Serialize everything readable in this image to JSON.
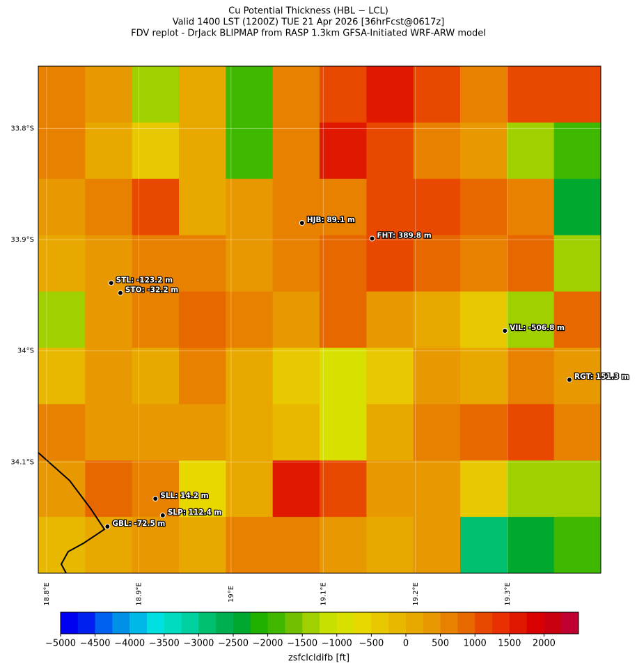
{
  "chart_data": {
    "type": "map",
    "title": [
      "Cu Potential Thickness (HBL − LCL)",
      "Valid 1400 LST (1200Z) TUE 21 Apr 2026 [36hrFcst@0617z]",
      "FDV replot - DrJack BLIPMAP from RASP 1.3km GFSA-Initiated WRF-ARW model"
    ],
    "xlim": [
      18.791,
      19.401
    ],
    "ylim": [
      33.744,
      34.2
    ],
    "xticks": [
      {
        "value": 18.8,
        "label": "18.8°E"
      },
      {
        "value": 18.9,
        "label": "18.9°E"
      },
      {
        "value": 19.0,
        "label": "19°E"
      },
      {
        "value": 19.1,
        "label": "19.1°E"
      },
      {
        "value": 19.2,
        "label": "19.2°E"
      },
      {
        "value": 19.3,
        "label": "19.3°E"
      }
    ],
    "yticks": [
      {
        "value": 33.8,
        "label": "33.8°S"
      },
      {
        "value": 33.9,
        "label": "33.9°S"
      },
      {
        "value": 34.0,
        "label": "34°S"
      },
      {
        "value": 34.1,
        "label": "34.1°S"
      }
    ],
    "grid": [
      [
        500,
        250,
        -1500,
        0,
        -2000,
        500,
        1000,
        1500,
        1000,
        500,
        1000,
        1000
      ],
      [
        500,
        0,
        -500,
        0,
        -2000,
        500,
        1500,
        1000,
        500,
        250,
        -1500,
        -2000
      ],
      [
        250,
        500,
        1000,
        0,
        250,
        500,
        500,
        1000,
        1000,
        750,
        500,
        -2500
      ],
      [
        0,
        250,
        500,
        500,
        250,
        500,
        750,
        1000,
        750,
        500,
        750,
        -1500
      ],
      [
        -1500,
        250,
        500,
        750,
        500,
        250,
        750,
        250,
        0,
        -500,
        -1500,
        750
      ],
      [
        -250,
        250,
        0,
        500,
        0,
        -500,
        -1000,
        -500,
        250,
        0,
        500,
        250
      ],
      [
        500,
        250,
        250,
        250,
        0,
        -250,
        -1000,
        0,
        500,
        750,
        1000,
        500
      ],
      [
        250,
        750,
        500,
        -750,
        0,
        1500,
        1000,
        250,
        250,
        -500,
        -1500,
        -1500
      ],
      [
        -250,
        0,
        250,
        0,
        500,
        500,
        250,
        0,
        250,
        -3000,
        -2500,
        -2000
      ]
    ],
    "stations": [
      {
        "label": "HJB: 89.1 m",
        "lon": 19.077,
        "lat": 33.885
      },
      {
        "label": "FHT: 389.8 m",
        "lon": 19.153,
        "lat": 33.899
      },
      {
        "label": "STL: -123.2 m",
        "lon": 18.87,
        "lat": 33.939
      },
      {
        "label": "STO: -32.2 m",
        "lon": 18.88,
        "lat": 33.948
      },
      {
        "label": "VIL: -506.8 m",
        "lon": 19.297,
        "lat": 33.982
      },
      {
        "label": "RGT: 151.3 m",
        "lon": 19.367,
        "lat": 34.026
      },
      {
        "label": "SLL: 14.2 m",
        "lon": 18.918,
        "lat": 34.133
      },
      {
        "label": "SLP: 112.4 m",
        "lon": 18.926,
        "lat": 34.148
      },
      {
        "label": "GBL: -72.5 m",
        "lon": 18.866,
        "lat": 34.158
      }
    ],
    "colorbar": {
      "label": "zsfclcldifb [ft]",
      "clim": [
        -5000,
        2500
      ],
      "colors": [
        "#0000f0",
        "#0020f0",
        "#0060f0",
        "#0090e8",
        "#00b8e8",
        "#00e0e0",
        "#00dcc0",
        "#00d0a0",
        "#00c070",
        "#00b050",
        "#00a830",
        "#20b000",
        "#40b800",
        "#70c000",
        "#a0d000",
        "#c8e000",
        "#d8e000",
        "#e8d800",
        "#e8c800",
        "#e8b800",
        "#e8a800",
        "#e89800",
        "#e88000",
        "#e86800",
        "#e84800",
        "#e83000",
        "#e01800",
        "#d80000",
        "#c80010",
        "#c00030"
      ],
      "ticks": [
        {
          "value": -5000,
          "label": "−5000"
        },
        {
          "value": -4500,
          "label": "−4500"
        },
        {
          "value": -4000,
          "label": "−4000"
        },
        {
          "value": -3500,
          "label": "−3500"
        },
        {
          "value": -3000,
          "label": "−3000"
        },
        {
          "value": -2500,
          "label": "−2500"
        },
        {
          "value": -2000,
          "label": "−2000"
        },
        {
          "value": -1500,
          "label": "−1500"
        },
        {
          "value": -1000,
          "label": "−1000"
        },
        {
          "value": -500,
          "label": "−500"
        },
        0,
        500,
        1000,
        1500,
        2000
      ]
    }
  }
}
